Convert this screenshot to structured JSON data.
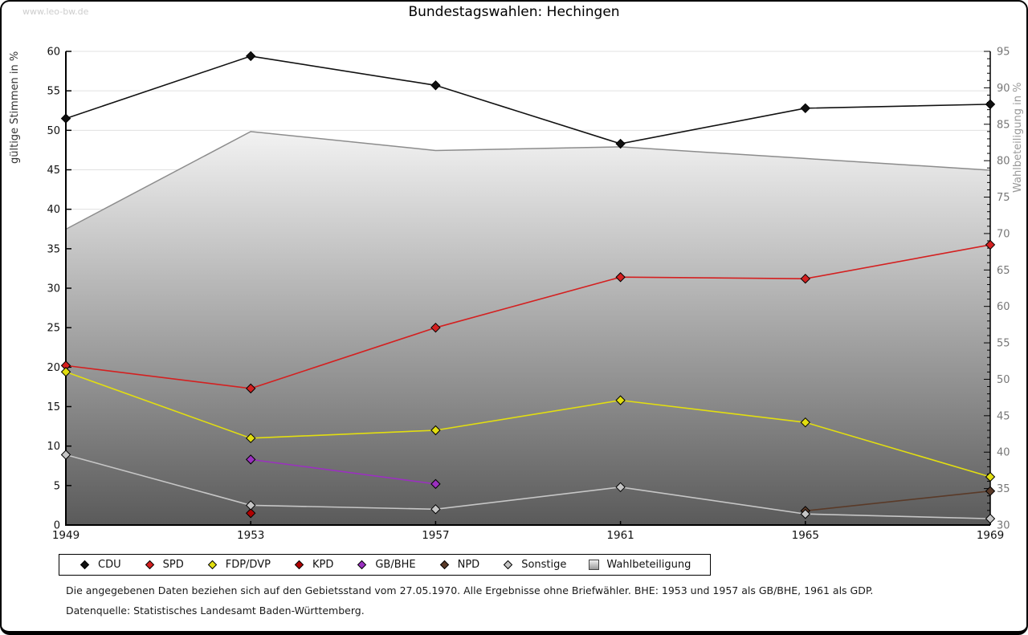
{
  "watermark": "www.leo-bw.de",
  "title": "Bundestagswahlen: Hechingen",
  "chart_data": {
    "type": "line",
    "title": "Bundestagswahlen: Hechingen",
    "x": [
      1949,
      1953,
      1957,
      1961,
      1965,
      1969
    ],
    "ylabel_left": "gültige Stimmen in %",
    "ylabel_right": "Wahlbeteiligung in %",
    "ylim_left": [
      0,
      60
    ],
    "ylim_right": [
      30,
      95
    ],
    "ytick_step": 5,
    "right_minor_tick_step": 1,
    "grid": true,
    "legend_position": "bottom",
    "marker": "diamond",
    "series": [
      {
        "name": "CDU",
        "axis": "left",
        "type": "line",
        "color": "#111111",
        "values": [
          51.5,
          59.4,
          55.7,
          48.3,
          52.8,
          53.3
        ]
      },
      {
        "name": "SPD",
        "axis": "left",
        "type": "line",
        "color": "#d42020",
        "values": [
          20.2,
          17.3,
          25.0,
          31.4,
          31.2,
          35.5
        ]
      },
      {
        "name": "FDP/DVP",
        "axis": "left",
        "type": "line",
        "color": "#e2de10",
        "values": [
          19.4,
          11.0,
          12.0,
          15.8,
          13.0,
          6.1
        ]
      },
      {
        "name": "KPD",
        "axis": "left",
        "type": "line",
        "color": "#b00000",
        "values": [
          null,
          1.5,
          null,
          null,
          null,
          null
        ]
      },
      {
        "name": "GB/BHE",
        "axis": "left",
        "type": "line",
        "color": "#9b30c0",
        "values": [
          null,
          8.3,
          5.2,
          null,
          null,
          null
        ]
      },
      {
        "name": "NPD",
        "axis": "left",
        "type": "line",
        "color": "#5a3a28",
        "values": [
          null,
          null,
          null,
          null,
          1.8,
          4.3
        ]
      },
      {
        "name": "Sonstige",
        "axis": "left",
        "type": "line",
        "color": "#c6c6c6",
        "values": [
          8.9,
          2.5,
          2.0,
          4.8,
          1.4,
          0.8
        ]
      },
      {
        "name": "Wahlbeteiligung",
        "axis": "right",
        "type": "area",
        "color": "#8c8c8c",
        "values": [
          70.6,
          84.0,
          81.4,
          81.9,
          80.3,
          78.7
        ]
      }
    ],
    "area_gradient": [
      "#f6f6f6",
      "#5a5a5a"
    ],
    "gridline_color": "#e0e0e0",
    "axis_color": "#000000",
    "left_tick_label_color": "#111111",
    "right_tick_label_color": "#777777",
    "x_tick_label_color": "#111111"
  },
  "footnotes": [
    "Die angegebenen Daten beziehen sich auf den Gebietsstand vom 27.05.1970. Alle Ergebnisse ohne Briefwähler. BHE: 1953 und 1957 als GB/BHE, 1961 als GDP.",
    "Datenquelle: Statistisches Landesamt Baden-Württemberg."
  ]
}
